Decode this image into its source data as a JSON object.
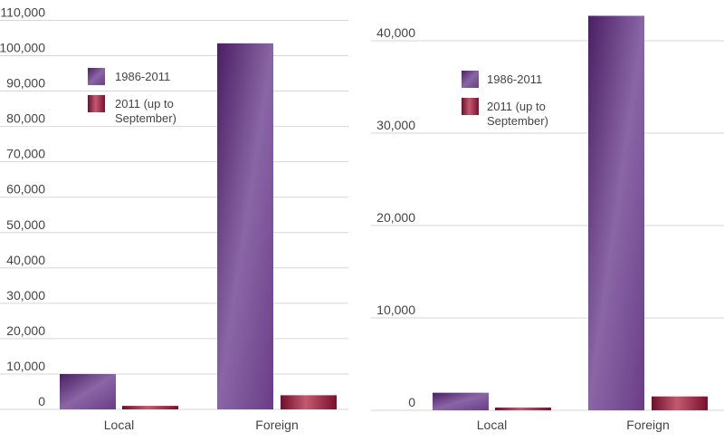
{
  "chart_data": [
    {
      "type": "bar",
      "categories": [
        "Local",
        "Foreign"
      ],
      "series": [
        {
          "name": "1986-2011",
          "values": [
            10000,
            103500
          ]
        },
        {
          "name": "2011 (up to September)",
          "values": [
            1000,
            4000
          ]
        }
      ],
      "yticks": [
        "0",
        "10,000",
        "20,000",
        "30,000",
        "40,000",
        "50,000",
        "60,000",
        "70,000",
        "80,000",
        "90,000",
        "100,000",
        "110,000"
      ],
      "ylim": [
        0,
        110000
      ],
      "grid": true,
      "legend_placement": "top-left"
    },
    {
      "type": "bar",
      "categories": [
        "Local",
        "Foreign"
      ],
      "series": [
        {
          "name": "1986-2011",
          "values": [
            1900,
            42700
          ]
        },
        {
          "name": "2011 (up to September)",
          "values": [
            300,
            1500
          ]
        }
      ],
      "yticks": [
        "0",
        "10,000",
        "20,000",
        "30,000",
        "40,000"
      ],
      "ylim": [
        0,
        40000
      ],
      "grid": true,
      "legend_placement": "top-left"
    }
  ],
  "colors": {
    "series1": "#7b4f94",
    "series2": "#a8143e",
    "grid": "#d6d6d6",
    "axis_text": "#444444"
  }
}
